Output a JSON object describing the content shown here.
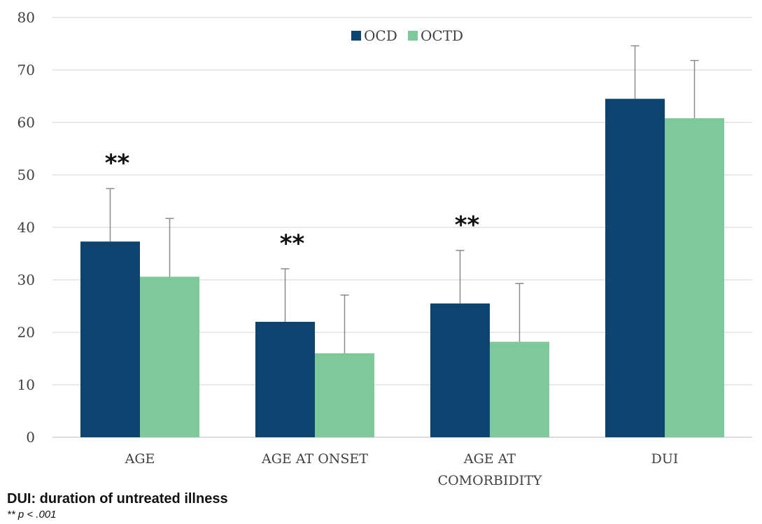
{
  "chart_data": {
    "type": "bar",
    "categories": [
      "AGE",
      "AGE AT ONSET",
      "AGE AT\nCOMORBIDITY",
      "DUI"
    ],
    "series": [
      {
        "name": "OCD",
        "color": "#0c436f",
        "values": [
          37.3,
          22.0,
          25.5,
          64.5
        ],
        "errors": [
          10.1,
          10.1,
          10.1,
          10.1
        ]
      },
      {
        "name": "OCTD",
        "color": "#7ec99a",
        "values": [
          30.6,
          16.0,
          18.2,
          60.8
        ],
        "errors": [
          11.1,
          11.1,
          11.1,
          11.0
        ]
      }
    ],
    "ylim": [
      0,
      80
    ],
    "yticks": [
      0,
      10,
      20,
      30,
      40,
      50,
      60,
      70,
      80
    ],
    "grid": true,
    "legend_position": "top-center",
    "annotations": [
      {
        "category_index": 0,
        "text": "**"
      },
      {
        "category_index": 1,
        "text": "**"
      },
      {
        "category_index": 2,
        "text": "**"
      }
    ],
    "title": "",
    "xlabel": "",
    "ylabel": ""
  },
  "footnote": {
    "abbreviation": "DUI: duration of untreated illness",
    "significance": "** p < .001"
  }
}
